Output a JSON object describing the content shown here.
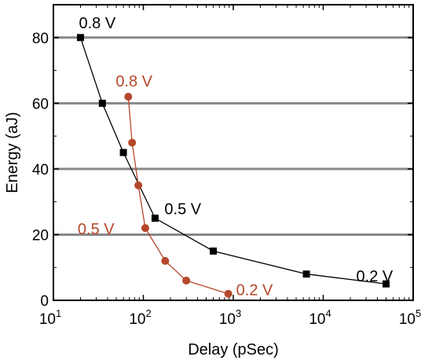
{
  "chart_data": {
    "type": "line",
    "xlabel": "Delay (pSec)",
    "ylabel": "Energy (aJ)",
    "x_scale": "log",
    "xlim": [
      10,
      100000
    ],
    "ylim": [
      0,
      90
    ],
    "x_ticks": [
      {
        "value": 10,
        "base": "10",
        "exp": "1"
      },
      {
        "value": 100,
        "base": "10",
        "exp": "2"
      },
      {
        "value": 1000,
        "base": "10",
        "exp": "3"
      },
      {
        "value": 10000,
        "base": "10",
        "exp": "4"
      },
      {
        "value": 100000,
        "base": "10",
        "exp": "5"
      }
    ],
    "y_ticks": [
      0,
      20,
      40,
      60,
      80
    ],
    "grid": "horizontal",
    "series": [
      {
        "color": "#000000",
        "marker": "square",
        "points": [
          {
            "x": 20,
            "y": 80
          },
          {
            "x": 35,
            "y": 60
          },
          {
            "x": 60,
            "y": 45
          },
          {
            "x": 135,
            "y": 25
          },
          {
            "x": 600,
            "y": 15
          },
          {
            "x": 6500,
            "y": 8
          },
          {
            "x": 50000,
            "y": 5
          }
        ],
        "annotations": [
          {
            "text": "0.8 V",
            "x": 20,
            "y": 80
          },
          {
            "text": "0.5 V",
            "x": 135,
            "y": 25
          },
          {
            "text": "0.2 V",
            "x": 50000,
            "y": 5
          }
        ]
      },
      {
        "color": "#b5472a",
        "marker": "circle",
        "points": [
          {
            "x": 68,
            "y": 62
          },
          {
            "x": 75,
            "y": 48
          },
          {
            "x": 88,
            "y": 35
          },
          {
            "x": 105,
            "y": 22
          },
          {
            "x": 175,
            "y": 12
          },
          {
            "x": 300,
            "y": 6
          },
          {
            "x": 880,
            "y": 2
          }
        ],
        "annotations": [
          {
            "text": "0.8 V",
            "x": 68,
            "y": 62
          },
          {
            "text": "0.5 V",
            "x": 105,
            "y": 22
          },
          {
            "text": "0.2 V",
            "x": 880,
            "y": 2
          }
        ]
      }
    ]
  }
}
